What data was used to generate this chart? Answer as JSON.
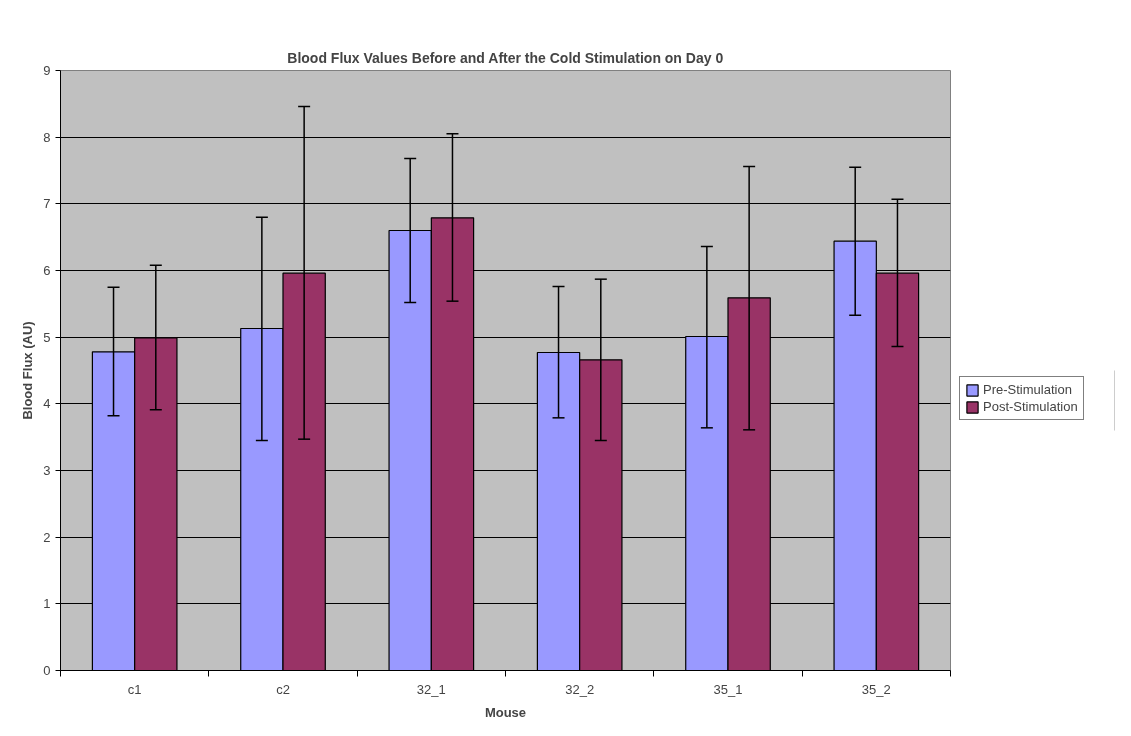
{
  "chart_data": {
    "type": "bar",
    "title": "Blood Flux Values Before and After the Cold Stimulation on Day 0",
    "xlabel": "Mouse",
    "ylabel": "Blood Flux (AU)",
    "categories": [
      "c1",
      "c2",
      "32_1",
      "32_2",
      "35_1",
      "35_2"
    ],
    "series": [
      {
        "name": "Pre-Stimulation",
        "color": "#9999ff",
        "values": [
          4.78,
          5.13,
          6.6,
          4.77,
          5.01,
          6.44
        ],
        "errors": [
          [
            3.82,
            5.75
          ],
          [
            3.45,
            6.8
          ],
          [
            5.52,
            7.68
          ],
          [
            3.79,
            5.76
          ],
          [
            3.64,
            6.36
          ],
          [
            5.33,
            7.55
          ]
        ]
      },
      {
        "name": "Post-Stimulation",
        "color": "#993366",
        "values": [
          4.99,
          5.96,
          6.79,
          4.66,
          5.59,
          5.96
        ],
        "errors": [
          [
            3.91,
            6.08
          ],
          [
            3.47,
            8.46
          ],
          [
            5.54,
            8.05
          ],
          [
            3.45,
            5.87
          ],
          [
            3.61,
            7.56
          ],
          [
            4.86,
            7.07
          ]
        ]
      }
    ],
    "ylim": [
      0,
      9
    ],
    "yticks": [
      0,
      1,
      2,
      3,
      4,
      5,
      6,
      7,
      8,
      9
    ],
    "grid": "y",
    "legend": "right"
  }
}
